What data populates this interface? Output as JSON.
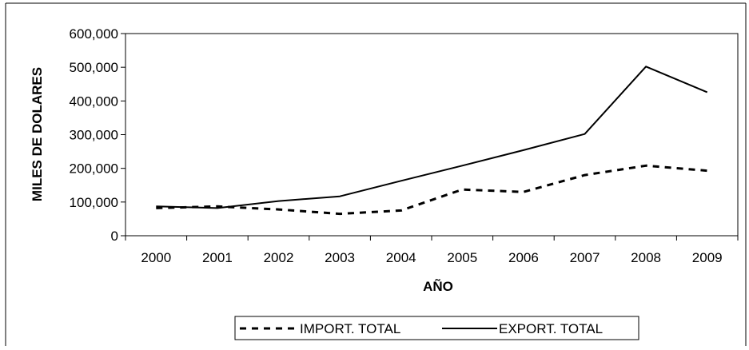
{
  "chart_data": {
    "type": "line",
    "title": "",
    "xlabel": "AÑO",
    "ylabel": "MILES DE DOLARES",
    "categories": [
      "2000",
      "2001",
      "2002",
      "2003",
      "2004",
      "2005",
      "2006",
      "2007",
      "2008",
      "2009"
    ],
    "ylim": [
      0,
      600000
    ],
    "yticks": [
      0,
      100000,
      200000,
      300000,
      400000,
      500000,
      600000
    ],
    "ytick_labels": [
      "0",
      "100,000",
      "200,000",
      "300,000",
      "400,000",
      "500,000",
      "600,000"
    ],
    "grid": false,
    "legend_position": "bottom",
    "series": [
      {
        "name": "IMPORT. TOTAL",
        "style": "dashed",
        "color": "#000000",
        "values": [
          82000,
          87000,
          78000,
          65000,
          75000,
          137000,
          130000,
          180000,
          208000,
          193000
        ]
      },
      {
        "name": "EXPORT. TOTAL",
        "style": "solid",
        "color": "#000000",
        "values": [
          87000,
          82000,
          103000,
          117000,
          163000,
          208000,
          254000,
          302000,
          502000,
          426000
        ]
      }
    ]
  }
}
